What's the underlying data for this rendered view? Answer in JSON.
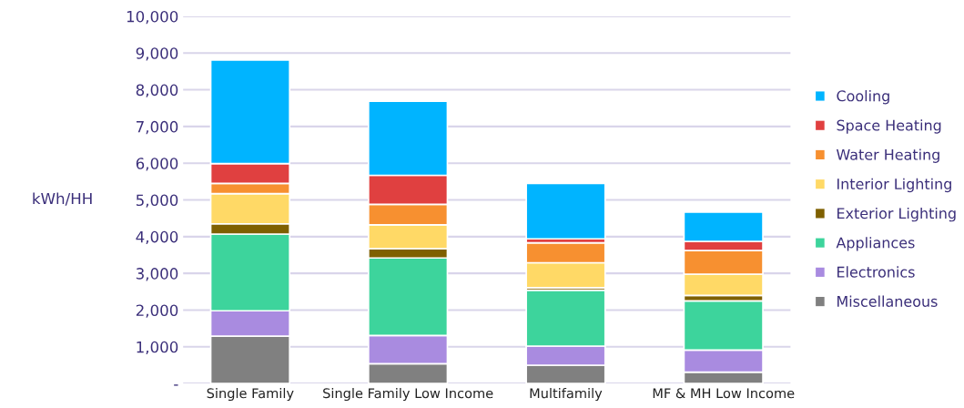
{
  "chart_data": {
    "type": "bar",
    "stacked": true,
    "ylabel": "kWh/HH",
    "categories": [
      "Single Family",
      "Single Family Low Income",
      "Multifamily",
      "MF & MH Low Income"
    ],
    "series": [
      {
        "name": "Miscellaneous",
        "color": "#808080",
        "values": [
          1290,
          540,
          500,
          310
        ]
      },
      {
        "name": "Electronics",
        "color": "#a98be0",
        "values": [
          690,
          770,
          520,
          600
        ]
      },
      {
        "name": "Appliances",
        "color": "#3dd49c",
        "values": [
          2090,
          2110,
          1520,
          1340
        ]
      },
      {
        "name": "Exterior Lighting",
        "color": "#7f6000",
        "values": [
          280,
          250,
          70,
          150
        ]
      },
      {
        "name": "Interior Lighting",
        "color": "#ffd966",
        "values": [
          820,
          650,
          680,
          580
        ]
      },
      {
        "name": "Water Heating",
        "color": "#f79030",
        "values": [
          280,
          560,
          540,
          640
        ]
      },
      {
        "name": "Space Heating",
        "color": "#e04040",
        "values": [
          540,
          790,
          110,
          250
        ]
      },
      {
        "name": "Cooling",
        "color": "#00b4ff",
        "values": [
          2820,
          2020,
          1510,
          800
        ]
      }
    ],
    "ylim": [
      0,
      10000
    ],
    "yticks": [
      {
        "value": 0,
        "label": "-"
      },
      {
        "value": 1000,
        "label": "1,000"
      },
      {
        "value": 2000,
        "label": "2,000"
      },
      {
        "value": 3000,
        "label": "3,000"
      },
      {
        "value": 4000,
        "label": "4,000"
      },
      {
        "value": 5000,
        "label": "5,000"
      },
      {
        "value": 6000,
        "label": "6,000"
      },
      {
        "value": 7000,
        "label": "7,000"
      },
      {
        "value": 8000,
        "label": "8,000"
      },
      {
        "value": 9000,
        "label": "9,000"
      },
      {
        "value": 10000,
        "label": "10,000"
      }
    ],
    "grid": "y",
    "legend": "right"
  }
}
